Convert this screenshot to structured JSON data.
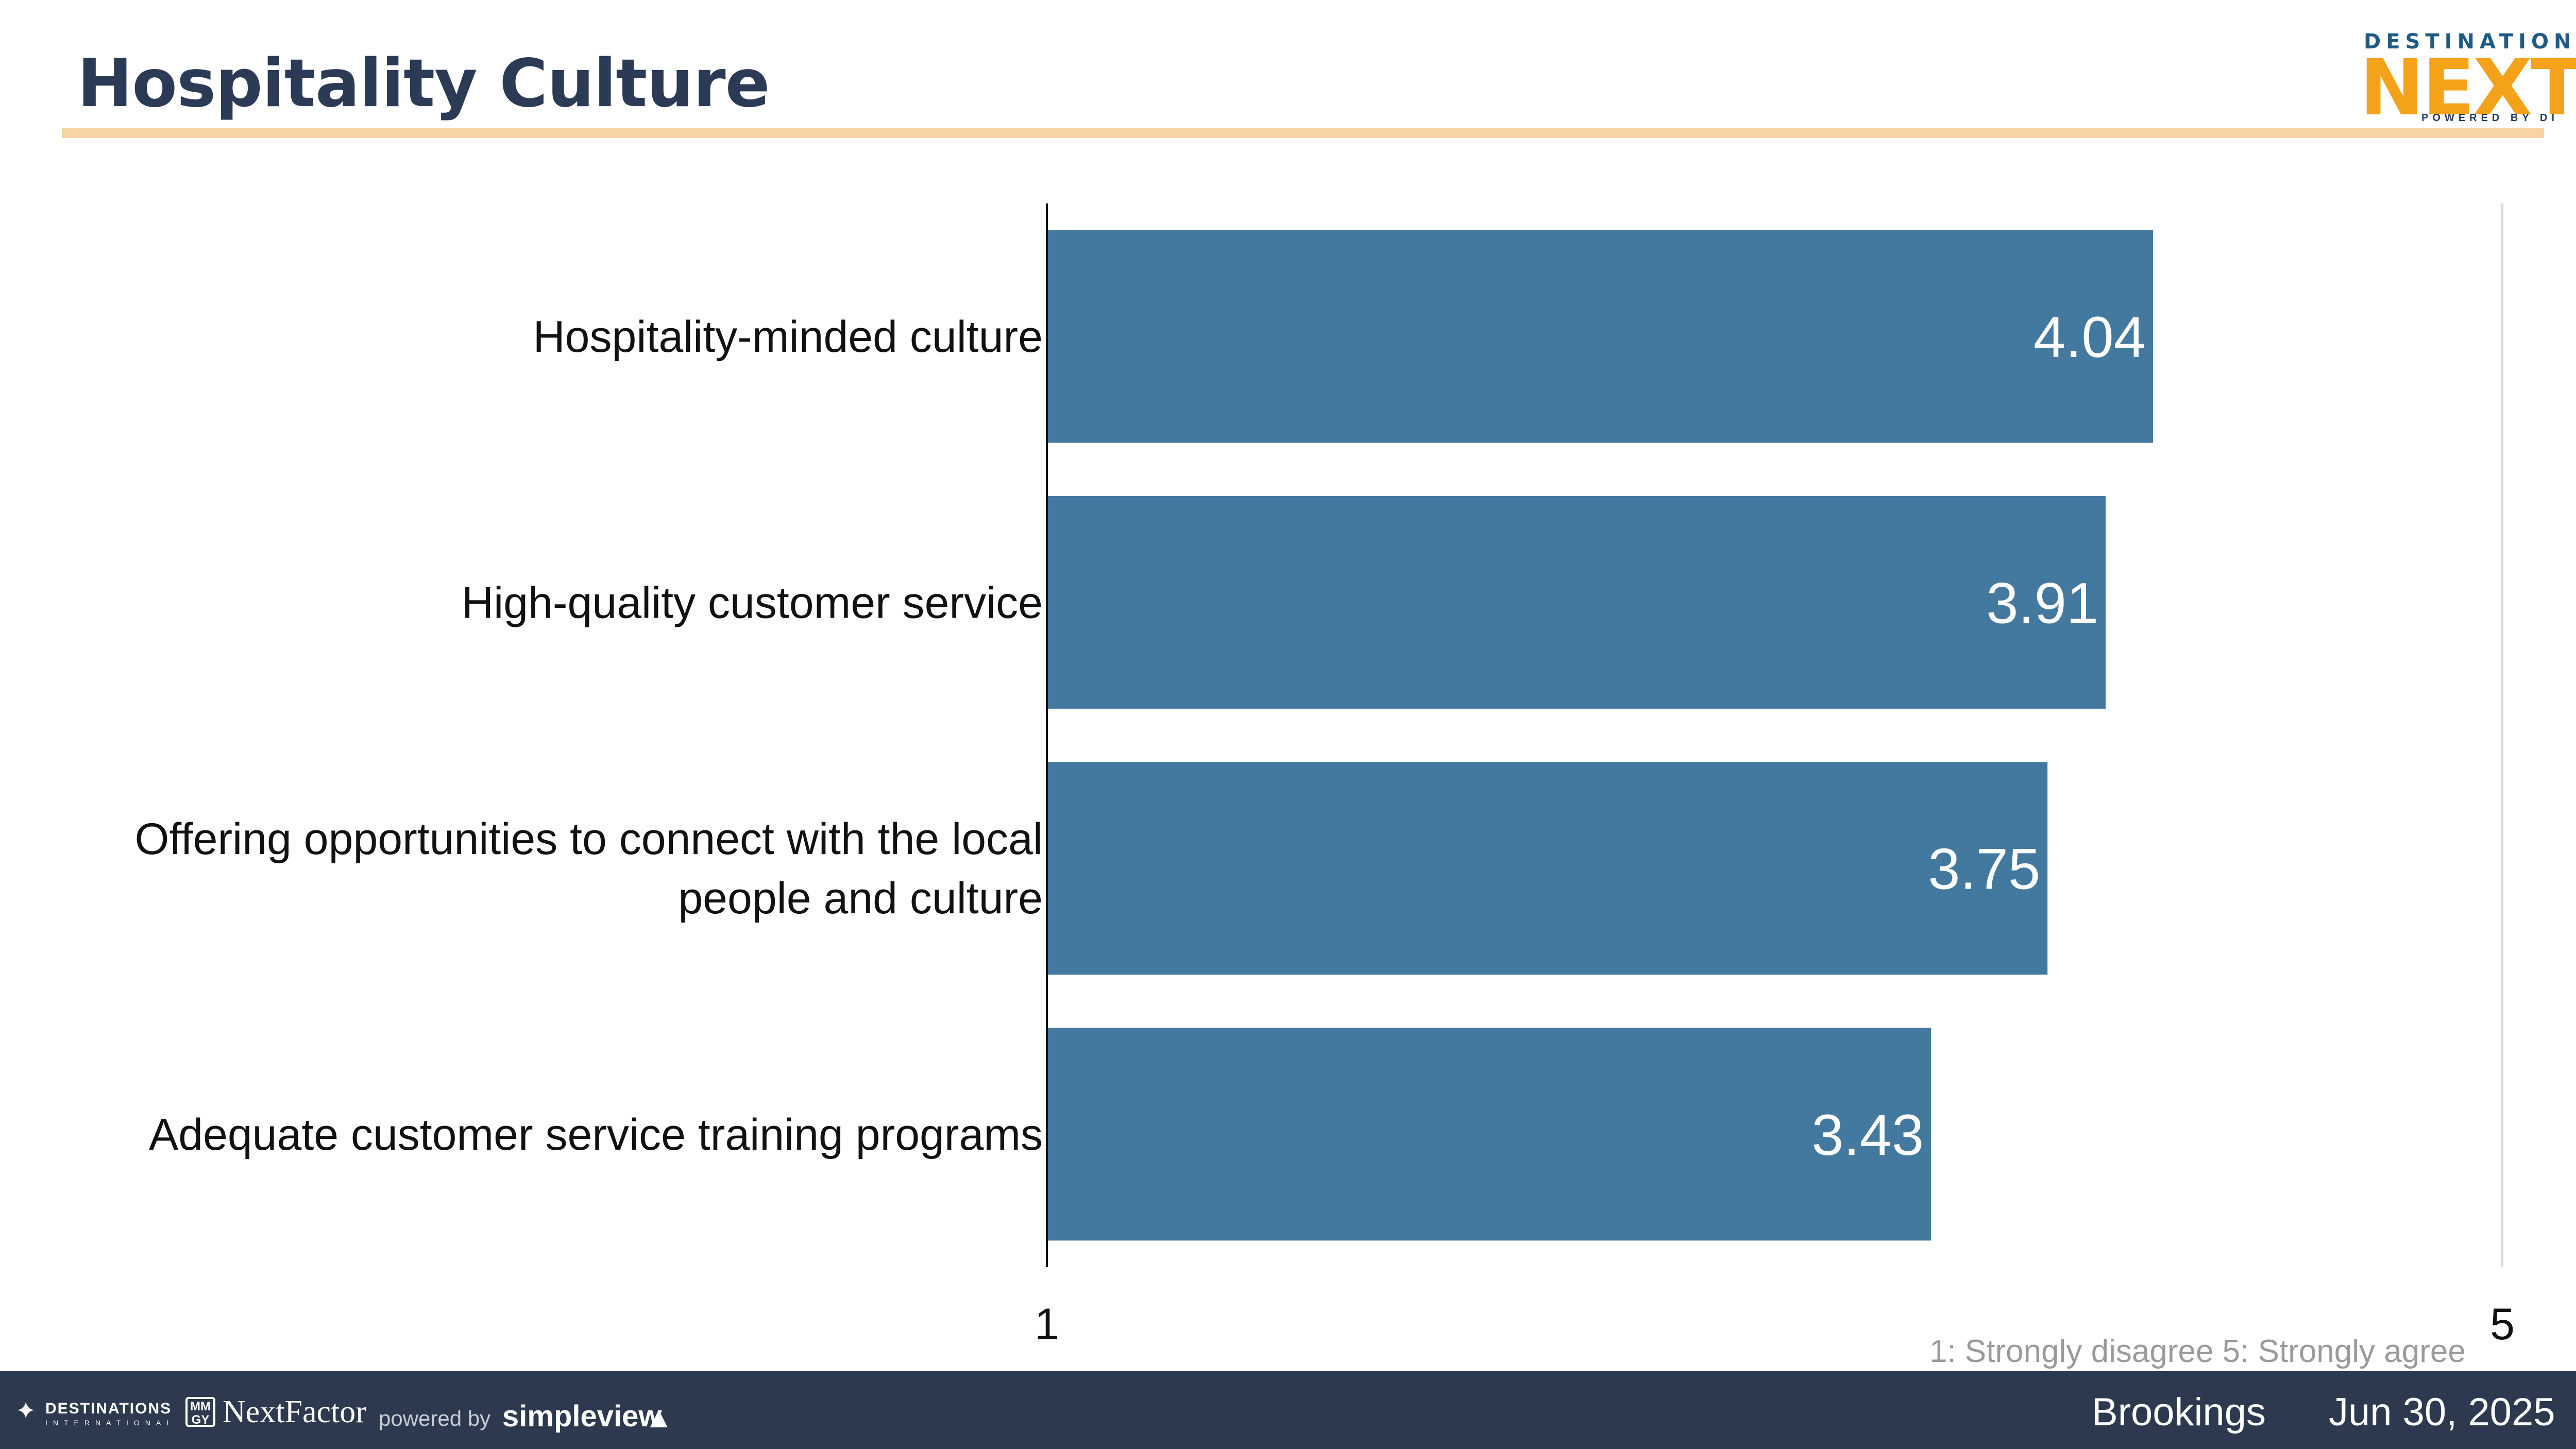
{
  "header": {
    "title": "Hospitality Culture",
    "logo": {
      "top_text": "DESTINATION",
      "main_text": "NEXT",
      "sub_text": "POWERED BY DI",
      "accent_color": "#f5a21b",
      "secondary_color": "#1f5a85"
    }
  },
  "chart_data": {
    "type": "bar",
    "orientation": "horizontal",
    "categories": [
      "Hospitality-minded culture",
      "High-quality customer service",
      "Offering opportunities to connect with the local people and culture",
      "Adequate customer service training programs"
    ],
    "category_lines": [
      [
        "Hospitality-minded culture"
      ],
      [
        "High-quality customer service"
      ],
      [
        "Offering opportunities to connect with the local",
        "people and culture"
      ],
      [
        "Adequate customer service training programs"
      ]
    ],
    "values": [
      4.04,
      3.91,
      3.75,
      3.43
    ],
    "data_labels": [
      "4.04",
      "3.91",
      "3.75",
      "3.43"
    ],
    "xlim": [
      1,
      5
    ],
    "x_ticks": [
      "1",
      "5"
    ],
    "bar_color": "#44799f",
    "title": "",
    "xlabel": "",
    "ylabel": "",
    "grid": false,
    "legend": "none"
  },
  "scale_note": "1: Strongly disagree  5: Strongly agree",
  "footer": {
    "partner_name": "DESTINATIONS",
    "partner_sub": "INTERNATIONAL",
    "mmgy": "MM GY",
    "nextfactor": "NextFactor",
    "powered_by": "powered by",
    "simpleview": "simpleview",
    "city": "Brookings",
    "date": "Jun 30, 2025",
    "background_color": "#2c394e"
  }
}
